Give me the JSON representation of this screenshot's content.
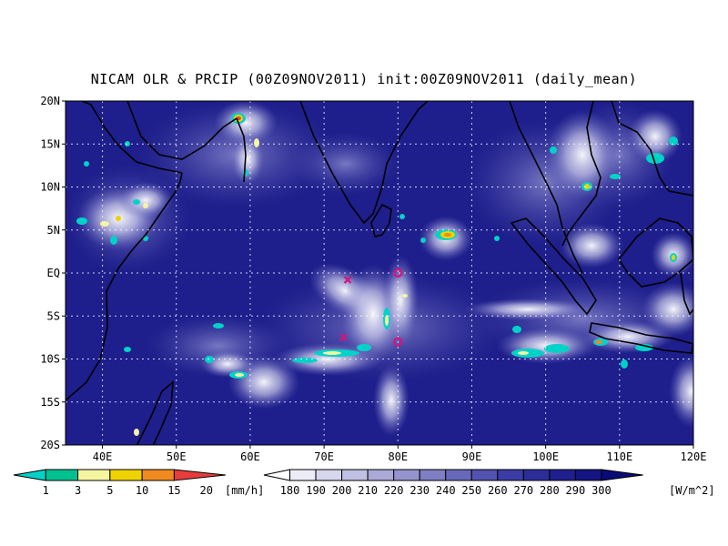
{
  "title": "NICAM OLR & PRCIP (00Z09NOV2011) init:00Z09NOV2011 (daily_mean)",
  "map": {
    "lon_range": [
      35,
      120
    ],
    "lat_range": [
      -20,
      20
    ],
    "lon_ticks": [
      "40E",
      "50E",
      "60E",
      "70E",
      "80E",
      "90E",
      "100E",
      "110E",
      "120E"
    ],
    "lat_ticks": [
      "20N",
      "15N",
      "10N",
      "5N",
      "EQ",
      "5S",
      "10S",
      "15S",
      "20S"
    ],
    "background_color": "#1e1e8c",
    "markers": [
      {
        "type": "x",
        "lon": 73.2,
        "lat": -0.8,
        "color": "#d4147a"
      },
      {
        "type": "x",
        "lon": 72.6,
        "lat": -7.5,
        "color": "#d4147a"
      },
      {
        "type": "o",
        "lon": 80.0,
        "lat": 0.0,
        "color": "#d4147a"
      },
      {
        "type": "o",
        "lon": 80.0,
        "lat": -8.0,
        "color": "#d4147a"
      }
    ]
  },
  "precip_colorbar": {
    "ticks": [
      "1",
      "3",
      "5",
      "10",
      "15",
      "20"
    ],
    "unit": "[mm/h]",
    "colors": [
      "#00d2c8",
      "#00c090",
      "#f5f5a0",
      "#f0d200",
      "#f08a1e",
      "#e63c3c"
    ]
  },
  "olr_colorbar": {
    "ticks": [
      "180",
      "190",
      "200",
      "210",
      "220",
      "230",
      "240",
      "250",
      "260",
      "270",
      "280",
      "290",
      "300"
    ],
    "unit": "[W/m^2]",
    "colors": [
      "#ffffff",
      "#ececf6",
      "#d6d6ec",
      "#c0c0e2",
      "#aaaad8",
      "#9494ce",
      "#7e7ec4",
      "#6868ba",
      "#5252b0",
      "#3c3ca6",
      "#2d2d9a",
      "#1f1f8e",
      "#141482",
      "#0a0a78"
    ]
  }
}
